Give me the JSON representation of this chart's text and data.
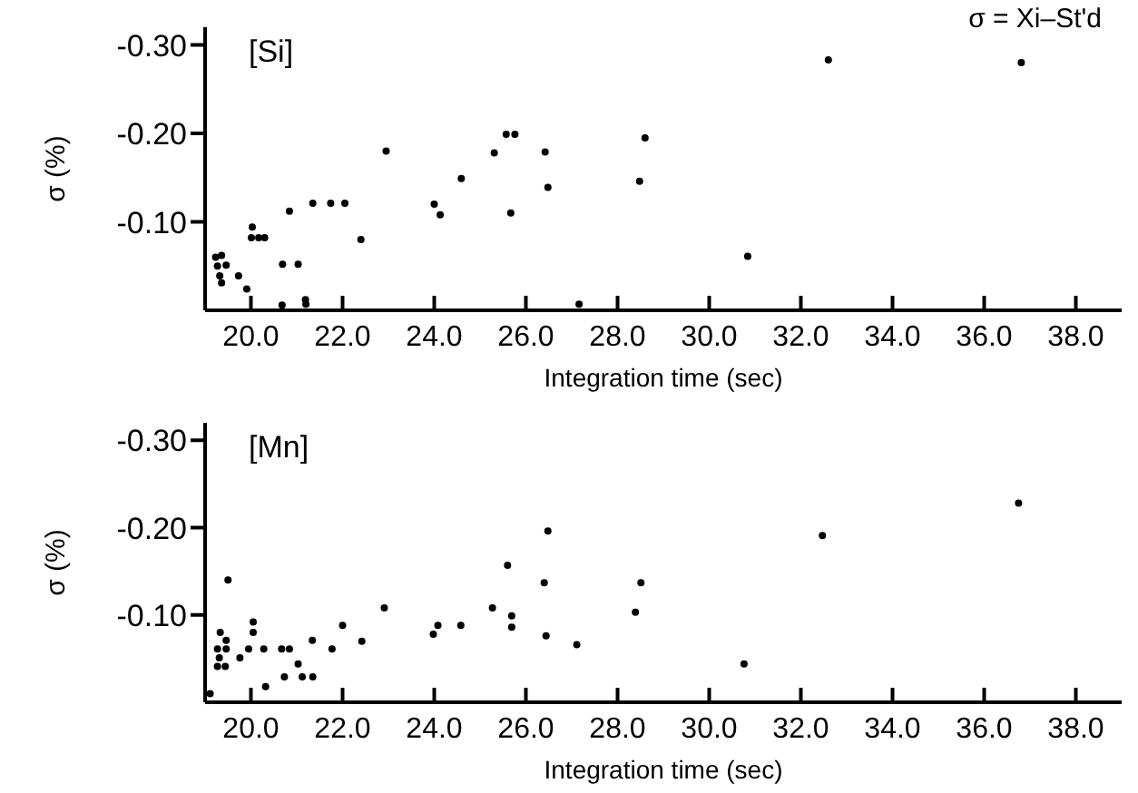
{
  "chart_data": [
    {
      "type": "scatter",
      "title": "[Si]",
      "xlabel": "Integration time (sec)",
      "ylabel": "σ (%)",
      "annotations": [
        "σ = Xi–St'd"
      ],
      "marker": "circle",
      "xlim": [
        19,
        39
      ],
      "xticks": [
        {
          "value": 20,
          "label": "20.0"
        },
        {
          "value": 22,
          "label": "22.0"
        },
        {
          "value": 24,
          "label": "24.0"
        },
        {
          "value": 26,
          "label": "26.0"
        },
        {
          "value": 28,
          "label": "28.0"
        },
        {
          "value": 30,
          "label": "30.0"
        },
        {
          "value": 32,
          "label": "32.0"
        },
        {
          "value": 34,
          "label": "34.0"
        },
        {
          "value": 36,
          "label": "36.0"
        },
        {
          "value": 38,
          "label": "38.0"
        }
      ],
      "ylim": [
        0,
        -0.32
      ],
      "yticks": [
        {
          "value": -0.1,
          "label": "-0.10"
        },
        {
          "value": -0.2,
          "label": "-0.20"
        },
        {
          "value": -0.3,
          "label": "-0.30"
        }
      ],
      "series": [
        {
          "color": "#000000",
          "x": [
            19.23,
            19.36,
            19.46,
            19.27,
            19.32,
            19.36,
            19.73,
            19.91,
            20.03,
            20.01,
            20.17,
            20.3,
            20.69,
            20.84,
            21.03,
            20.68,
            21.19,
            21.2,
            21.35,
            21.74,
            22.05,
            22.4,
            22.95,
            24.0,
            24.13,
            24.59,
            25.31,
            25.57,
            25.76,
            25.67,
            26.42,
            26.48,
            28.6,
            28.48,
            27.16,
            30.84,
            32.6,
            36.81
          ],
          "values": [
            -0.06,
            -0.062,
            -0.051,
            -0.05,
            -0.039,
            -0.031,
            -0.039,
            -0.024,
            -0.094,
            -0.082,
            -0.082,
            -0.082,
            -0.052,
            -0.112,
            -0.052,
            -0.006,
            -0.012,
            -0.007,
            -0.121,
            -0.121,
            -0.121,
            -0.08,
            -0.18,
            -0.12,
            -0.108,
            -0.149,
            -0.178,
            -0.199,
            -0.199,
            -0.11,
            -0.179,
            -0.139,
            -0.195,
            -0.146,
            -0.007,
            -0.061,
            -0.283,
            -0.28
          ]
        }
      ]
    },
    {
      "type": "scatter",
      "title": "[Mn]",
      "xlabel": "Integration time (sec)",
      "ylabel": "σ (%)",
      "marker": "circle",
      "xlim": [
        19,
        39
      ],
      "xticks": [
        {
          "value": 20,
          "label": "20.0"
        },
        {
          "value": 22,
          "label": "22.0"
        },
        {
          "value": 24,
          "label": "24.0"
        },
        {
          "value": 26,
          "label": "26.0"
        },
        {
          "value": 28,
          "label": "28.0"
        },
        {
          "value": 30,
          "label": "30.0"
        },
        {
          "value": 32,
          "label": "32.0"
        },
        {
          "value": 34,
          "label": "34.0"
        },
        {
          "value": 36,
          "label": "36.0"
        },
        {
          "value": 38,
          "label": "38.0"
        }
      ],
      "ylim": [
        0,
        -0.32
      ],
      "yticks": [
        {
          "value": -0.1,
          "label": "-0.10"
        },
        {
          "value": -0.2,
          "label": "-0.20"
        },
        {
          "value": -0.3,
          "label": "-0.30"
        }
      ],
      "series": [
        {
          "color": "#000000",
          "x": [
            19.11,
            19.33,
            19.46,
            19.27,
            19.46,
            19.31,
            19.27,
            19.44,
            19.5,
            19.76,
            19.95,
            20.05,
            20.05,
            20.28,
            20.32,
            20.67,
            20.84,
            20.73,
            21.03,
            21.12,
            21.35,
            21.34,
            21.77,
            22.0,
            22.42,
            22.91,
            23.98,
            24.08,
            24.58,
            25.27,
            25.6,
            25.69,
            25.69,
            26.4,
            26.48,
            26.44,
            27.11,
            28.39,
            28.51,
            30.76,
            32.47,
            36.75
          ],
          "values": [
            -0.01,
            -0.08,
            -0.071,
            -0.061,
            -0.061,
            -0.051,
            -0.041,
            -0.041,
            -0.14,
            -0.051,
            -0.061,
            -0.092,
            -0.08,
            -0.061,
            -0.018,
            -0.061,
            -0.061,
            -0.029,
            -0.044,
            -0.029,
            -0.029,
            -0.071,
            -0.061,
            -0.088,
            -0.07,
            -0.108,
            -0.078,
            -0.088,
            -0.088,
            -0.108,
            -0.157,
            -0.099,
            -0.086,
            -0.137,
            -0.196,
            -0.076,
            -0.066,
            -0.103,
            -0.137,
            -0.044,
            -0.191,
            -0.228
          ]
        }
      ]
    }
  ]
}
